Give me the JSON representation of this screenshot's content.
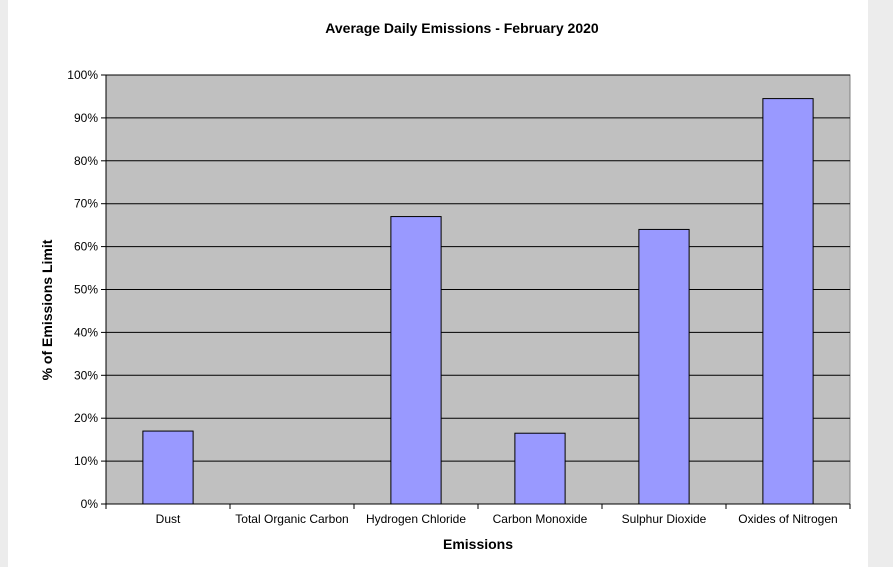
{
  "chart_data": {
    "type": "bar",
    "title": "Average Daily Emissions - February 2020",
    "xlabel": "Emissions",
    "ylabel": "% of Emissions Limit",
    "categories": [
      "Dust",
      "Total Organic Carbon",
      "Hydrogen Chloride",
      "Carbon Monoxide",
      "Sulphur Dioxide",
      "Oxides of Nitrogen"
    ],
    "series": [
      {
        "values": [
          17,
          0,
          67,
          16.5,
          64,
          94.5
        ]
      }
    ],
    "ylim": [
      0,
      100
    ],
    "yticks": [
      "0%",
      "10%",
      "20%",
      "30%",
      "40%",
      "50%",
      "60%",
      "70%",
      "80%",
      "90%",
      "100%"
    ],
    "grid": true,
    "legend": "none",
    "colors": {
      "bar": "#9999ff",
      "plot_background": "#c0c0c0",
      "gridline": "#000000"
    }
  }
}
